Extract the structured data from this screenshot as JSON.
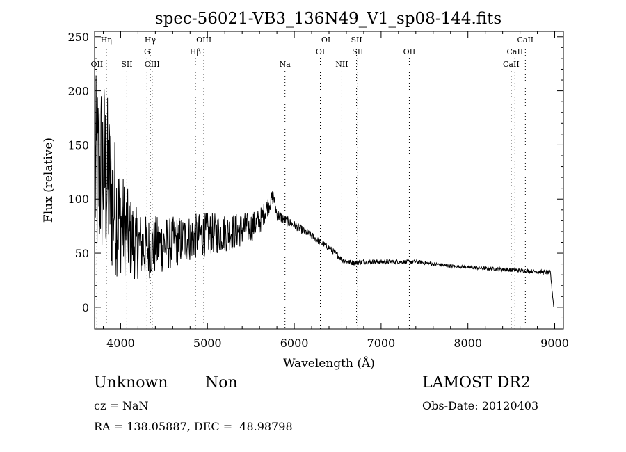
{
  "chart_data": {
    "type": "line",
    "title": "spec-56021-VB3_136N49_V1_sp08-144.fits",
    "xlabel": "Wavelength (Å)",
    "ylabel": "Flux (relative)",
    "xlim": [
      3700,
      9100
    ],
    "ylim": [
      -20,
      255
    ],
    "xticks": [
      4000,
      5000,
      6000,
      7000,
      8000,
      9000
    ],
    "yticks": [
      0,
      50,
      100,
      150,
      200,
      250
    ],
    "grid": false,
    "legend": "none",
    "line_color": "#000000",
    "continuum_nodes": [
      [
        3720,
        120
      ],
      [
        3800,
        130
      ],
      [
        3900,
        100
      ],
      [
        4000,
        80
      ],
      [
        4100,
        65
      ],
      [
        4200,
        58
      ],
      [
        4300,
        55
      ],
      [
        4400,
        57
      ],
      [
        4500,
        58
      ],
      [
        4600,
        60
      ],
      [
        4700,
        62
      ],
      [
        4800,
        64
      ],
      [
        4900,
        66
      ],
      [
        5000,
        68
      ],
      [
        5100,
        68
      ],
      [
        5200,
        69
      ],
      [
        5300,
        70
      ],
      [
        5400,
        72
      ],
      [
        5500,
        74
      ],
      [
        5600,
        79
      ],
      [
        5700,
        94
      ],
      [
        5760,
        103
      ],
      [
        5800,
        86
      ],
      [
        5900,
        80
      ],
      [
        6000,
        76
      ],
      [
        6100,
        71
      ],
      [
        6200,
        66
      ],
      [
        6300,
        60
      ],
      [
        6400,
        55
      ],
      [
        6500,
        48
      ],
      [
        6550,
        44
      ],
      [
        6600,
        42
      ],
      [
        6700,
        41
      ],
      [
        6800,
        42
      ],
      [
        7000,
        42
      ],
      [
        7200,
        42
      ],
      [
        7400,
        42
      ],
      [
        7600,
        40
      ],
      [
        7800,
        38
      ],
      [
        8000,
        37
      ],
      [
        8200,
        36
      ],
      [
        8400,
        35
      ],
      [
        8600,
        34
      ],
      [
        8800,
        33
      ],
      [
        8950,
        32
      ],
      [
        8990,
        0
      ]
    ],
    "noise_amplitude_nodes": [
      [
        3720,
        95
      ],
      [
        3800,
        90
      ],
      [
        3900,
        75
      ],
      [
        4000,
        50
      ],
      [
        4100,
        40
      ],
      [
        4200,
        32
      ],
      [
        4300,
        30
      ],
      [
        4400,
        28
      ],
      [
        4500,
        26
      ],
      [
        4600,
        24
      ],
      [
        4800,
        22
      ],
      [
        5000,
        20
      ],
      [
        5200,
        18
      ],
      [
        5400,
        16
      ],
      [
        5600,
        12
      ],
      [
        5800,
        6
      ],
      [
        6000,
        4
      ],
      [
        6400,
        3
      ],
      [
        6600,
        2.5
      ],
      [
        7000,
        2
      ],
      [
        8000,
        1.5
      ],
      [
        8900,
        2
      ]
    ],
    "line_markers": [
      {
        "label": "OII",
        "wavelength": 3727,
        "level": 3
      },
      {
        "label": "Hη",
        "wavelength": 3835,
        "level": 1
      },
      {
        "label": "SII",
        "wavelength": 4072,
        "level": 3
      },
      {
        "label": "Hγ",
        "wavelength": 4341,
        "level": 1
      },
      {
        "label": "G",
        "wavelength": 4304,
        "level": 2
      },
      {
        "label": "OIII",
        "wavelength": 4363,
        "level": 3
      },
      {
        "label": "OIII",
        "wavelength": 4959,
        "level": 1
      },
      {
        "label": "Hβ",
        "wavelength": 4861,
        "level": 2
      },
      {
        "label": "Na",
        "wavelength": 5893,
        "level": 3
      },
      {
        "label": "OI",
        "wavelength": 6364,
        "level": 1
      },
      {
        "label": "OI",
        "wavelength": 6300,
        "level": 2
      },
      {
        "label": "NII",
        "wavelength": 6548,
        "level": 3
      },
      {
        "label": "SII",
        "wavelength": 6717,
        "level": 1
      },
      {
        "label": "SII",
        "wavelength": 6731,
        "level": 2
      },
      {
        "label": "OII",
        "wavelength": 7325,
        "level": 2
      },
      {
        "label": "CaII",
        "wavelength": 8662,
        "level": 1
      },
      {
        "label": "CaII",
        "wavelength": 8542,
        "level": 2
      },
      {
        "label": "CaII",
        "wavelength": 8498,
        "level": 3
      }
    ]
  },
  "footer": {
    "object_class": "Unknown",
    "object_subclass": "Non",
    "cz": "cz = NaN",
    "radec": "RA = 138.05887, DEC =  48.98798",
    "survey": "LAMOST DR2",
    "obs_date": "Obs-Date: 20120403"
  }
}
